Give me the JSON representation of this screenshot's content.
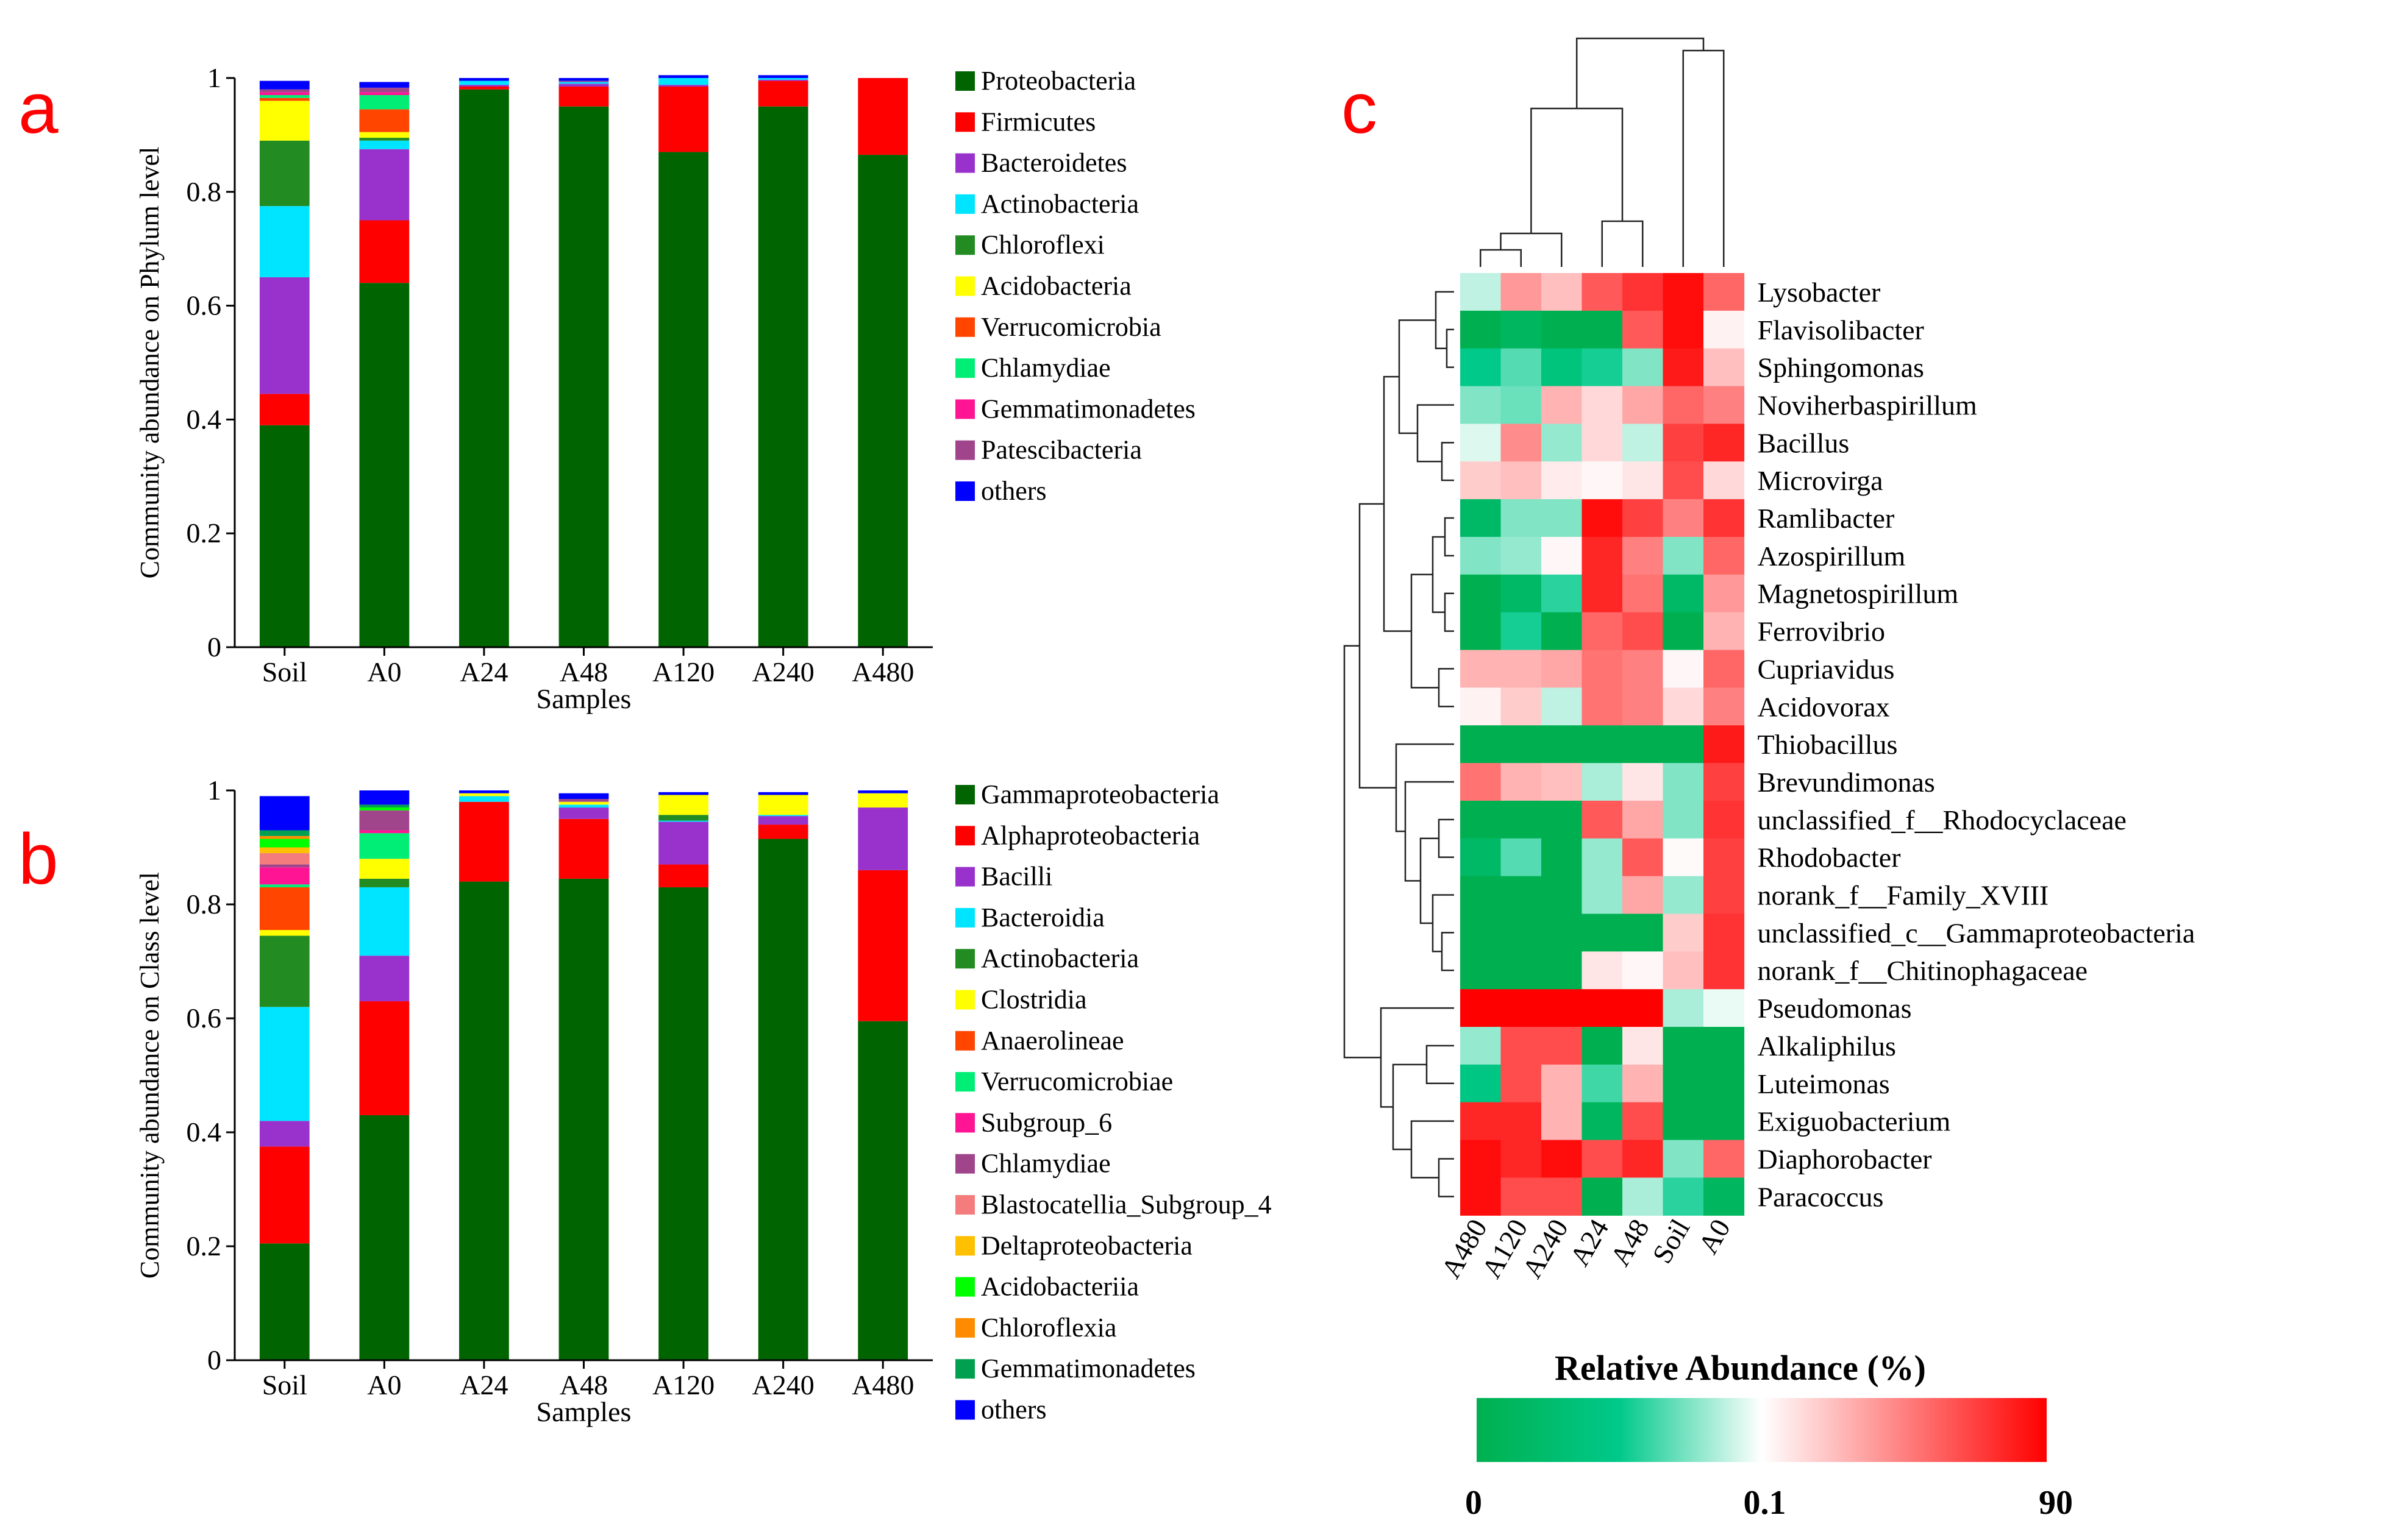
{
  "panels": {
    "a": "a",
    "b": "b",
    "c": "c"
  },
  "chart_data": [
    {
      "type": "bar",
      "stacked": true,
      "panel": "a",
      "xlabel": "Samples",
      "ylabel": "Community abundance on Phylum level",
      "ylim": [
        0,
        1
      ],
      "yticks": [
        "0",
        "0.2",
        "0.4",
        "0.6",
        "0.8",
        "1"
      ],
      "categories": [
        "Soil",
        "A0",
        "A24",
        "A48",
        "A120",
        "A240",
        "A480"
      ],
      "legend_position": "right",
      "series": [
        {
          "name": "Proteobacteria",
          "color": "#006400",
          "values": [
            0.39,
            0.64,
            0.98,
            0.95,
            0.87,
            0.95,
            0.865
          ]
        },
        {
          "name": "Firmicutes",
          "color": "#ff0000",
          "values": [
            0.055,
            0.11,
            0.005,
            0.035,
            0.115,
            0.045,
            0.135
          ]
        },
        {
          "name": "Bacteroidetes",
          "color": "#9932cc",
          "values": [
            0.205,
            0.125,
            0.003,
            0.005,
            0.003,
            0.002,
            0.0
          ]
        },
        {
          "name": "Actinobacteria",
          "color": "#00e5ff",
          "values": [
            0.125,
            0.015,
            0.007,
            0.003,
            0.012,
            0.003,
            0.0
          ]
        },
        {
          "name": "Chloroflexi",
          "color": "#228b22",
          "values": [
            0.115,
            0.005,
            0.0,
            0.0,
            0.0,
            0.0,
            0.0
          ]
        },
        {
          "name": "Acidobacteria",
          "color": "#ffff00",
          "values": [
            0.07,
            0.01,
            0.0,
            0.0,
            0.0,
            0.0,
            0.0
          ]
        },
        {
          "name": "Verrucomicrobia",
          "color": "#ff4500",
          "values": [
            0.005,
            0.04,
            0.0,
            0.0,
            0.0,
            0.0,
            0.0
          ]
        },
        {
          "name": "Chlamydiae",
          "color": "#00ee76",
          "values": [
            0.005,
            0.025,
            0.0,
            0.0,
            0.0,
            0.0,
            0.0
          ]
        },
        {
          "name": "Gemmatimonadetes",
          "color": "#ff1493",
          "values": [
            0.005,
            0.005,
            0.0,
            0.0,
            0.0,
            0.0,
            0.0
          ]
        },
        {
          "name": "Patescibacteria",
          "color": "#a0458c",
          "values": [
            0.005,
            0.008,
            0.0,
            0.002,
            0.0,
            0.0,
            0.0
          ]
        },
        {
          "name": "others",
          "color": "#0000ff",
          "values": [
            0.015,
            0.01,
            0.005,
            0.005,
            0.005,
            0.005,
            0.0
          ]
        }
      ]
    },
    {
      "type": "bar",
      "stacked": true,
      "panel": "b",
      "xlabel": "Samples",
      "ylabel": "Community abundance on Class level",
      "ylim": [
        0,
        1
      ],
      "yticks": [
        "0",
        "0.2",
        "0.4",
        "0.6",
        "0.8",
        "1"
      ],
      "categories": [
        "Soil",
        "A0",
        "A24",
        "A48",
        "A120",
        "A240",
        "A480"
      ],
      "legend_position": "right",
      "series": [
        {
          "name": "Gammaproteobacteria",
          "color": "#006400",
          "values": [
            0.205,
            0.43,
            0.84,
            0.845,
            0.83,
            0.915,
            0.595
          ]
        },
        {
          "name": "Alphaproteobacteria",
          "color": "#ff0000",
          "values": [
            0.17,
            0.2,
            0.14,
            0.105,
            0.04,
            0.025,
            0.265
          ]
        },
        {
          "name": "Bacilli",
          "color": "#9932cc",
          "values": [
            0.045,
            0.08,
            0.0,
            0.02,
            0.075,
            0.015,
            0.11
          ]
        },
        {
          "name": "Bacteroidia",
          "color": "#00e5ff",
          "values": [
            0.2,
            0.12,
            0.01,
            0.005,
            0.002,
            0.002,
            0.0
          ]
        },
        {
          "name": "Actinobacteria",
          "color": "#228b22",
          "values": [
            0.125,
            0.015,
            0.0,
            0.0,
            0.01,
            0.0,
            0.0
          ]
        },
        {
          "name": "Clostridia",
          "color": "#ffff00",
          "values": [
            0.01,
            0.035,
            0.005,
            0.005,
            0.035,
            0.035,
            0.025
          ]
        },
        {
          "name": "Anaerolineae",
          "color": "#ff4500",
          "values": [
            0.075,
            0.0,
            0.0,
            0.0,
            0.0,
            0.0,
            0.0
          ]
        },
        {
          "name": "Verrucomicrobiae",
          "color": "#00ee76",
          "values": [
            0.005,
            0.045,
            0.0,
            0.0,
            0.0,
            0.0,
            0.0
          ]
        },
        {
          "name": "Subgroup_6",
          "color": "#ff1493",
          "values": [
            0.03,
            0.005,
            0.0,
            0.0,
            0.0,
            0.0,
            0.0
          ]
        },
        {
          "name": "Chlamydiae",
          "color": "#a0458c",
          "values": [
            0.005,
            0.035,
            0.0,
            0.005,
            0.0,
            0.0,
            0.0
          ]
        },
        {
          "name": "Blastocatellia_Subgroup_4",
          "color": "#f47c7c",
          "values": [
            0.02,
            0.0,
            0.0,
            0.0,
            0.0,
            0.0,
            0.0
          ]
        },
        {
          "name": "Deltaproteobacteria",
          "color": "#ffc000",
          "values": [
            0.01,
            0.0,
            0.0,
            0.0,
            0.0,
            0.0,
            0.0
          ]
        },
        {
          "name": "Acidobacteriia",
          "color": "#00ff00",
          "values": [
            0.015,
            0.005,
            0.0,
            0.0,
            0.0,
            0.0,
            0.0
          ]
        },
        {
          "name": "Chloroflexia",
          "color": "#ff8c00",
          "values": [
            0.005,
            0.0,
            0.0,
            0.0,
            0.0,
            0.0,
            0.0
          ]
        },
        {
          "name": "Gemmatimonadetes",
          "color": "#00a050",
          "values": [
            0.01,
            0.005,
            0.0,
            0.0,
            0.0,
            0.0,
            0.0
          ]
        },
        {
          "name": "others",
          "color": "#0000ff",
          "values": [
            0.06,
            0.025,
            0.005,
            0.01,
            0.005,
            0.005,
            0.005
          ]
        }
      ]
    },
    {
      "type": "heatmap",
      "panel": "c",
      "columns": [
        "A480",
        "A120",
        "A240",
        "A24",
        "A48",
        "Soil",
        "A0"
      ],
      "rows": [
        "Lysobacter",
        "Flavisolibacter",
        "Sphingomonas",
        "Noviherbaspirillum",
        "Bacillus",
        "Microvirga",
        "Ramlibacter",
        "Azospirillum",
        "Magnetospirillum",
        "Ferrovibrio",
        "Cupriavidus",
        "Acidovorax",
        "Thiobacillus",
        "Brevundimonas",
        "unclassified_f__Rhodocyclaceae",
        "Rhodobacter",
        "norank_f__Family_XVIII",
        "unclassified_c__Gammaproteobacteria",
        "norank_f__Chitinophagaceae",
        "Pseudomonas",
        "Alkaliphilus",
        "Luteimonas",
        "Exiguobacterium",
        "Diaphorobacter",
        "Paracoccus"
      ],
      "values_scaled": [
        [
          -0.15,
          0.4,
          0.25,
          0.65,
          0.8,
          0.95,
          0.6
        ],
        [
          -1,
          -0.9,
          -1,
          -1,
          0.65,
          0.95,
          0.05
        ],
        [
          -0.6,
          -0.4,
          -0.7,
          -0.55,
          -0.3,
          0.9,
          0.25
        ],
        [
          -0.3,
          -0.35,
          0.3,
          0.15,
          0.35,
          0.6,
          0.5
        ],
        [
          -0.08,
          0.45,
          -0.25,
          0.15,
          -0.15,
          0.75,
          0.85
        ],
        [
          0.2,
          0.25,
          0.08,
          0.03,
          0.1,
          0.7,
          0.15
        ],
        [
          -0.85,
          -0.3,
          -0.3,
          0.95,
          0.75,
          0.5,
          0.8
        ],
        [
          -0.3,
          -0.25,
          0.03,
          0.85,
          0.5,
          -0.3,
          0.6
        ],
        [
          -1,
          -0.85,
          -0.5,
          0.85,
          0.55,
          -0.85,
          0.4
        ],
        [
          -1,
          -0.55,
          -1,
          0.6,
          0.7,
          -1,
          0.3
        ],
        [
          0.3,
          0.3,
          0.35,
          0.55,
          0.5,
          0.03,
          0.6
        ],
        [
          0.05,
          0.2,
          -0.15,
          0.55,
          0.5,
          0.15,
          0.5
        ],
        [
          -1,
          -1,
          -1,
          -1,
          -1,
          -1,
          0.9
        ],
        [
          0.55,
          0.3,
          0.25,
          -0.2,
          0.1,
          -0.3,
          0.75
        ],
        [
          -1,
          -1,
          -1,
          0.65,
          0.35,
          -0.3,
          0.8
        ],
        [
          -0.85,
          -0.4,
          -1,
          -0.25,
          0.65,
          0.02,
          0.75
        ],
        [
          -1,
          -1,
          -1,
          -0.25,
          0.35,
          -0.25,
          0.75
        ],
        [
          -1,
          -1,
          -1,
          -1,
          -1,
          0.2,
          0.8
        ],
        [
          -1,
          -1,
          -1,
          0.1,
          0.03,
          0.25,
          0.8
        ],
        [
          1,
          1,
          1,
          1,
          1,
          -0.2,
          -0.05
        ],
        [
          -0.25,
          0.7,
          0.7,
          -1,
          0.1,
          -1,
          -1
        ],
        [
          -0.65,
          0.7,
          0.3,
          -0.45,
          0.3,
          -1,
          -1
        ],
        [
          0.85,
          0.85,
          0.3,
          -0.9,
          0.7,
          -1,
          -1
        ],
        [
          0.95,
          0.85,
          0.95,
          0.7,
          0.85,
          -0.3,
          0.6
        ],
        [
          0.95,
          0.7,
          0.7,
          -1,
          -0.2,
          -0.5,
          -0.9
        ]
      ],
      "colorbar": {
        "title": "Relative Abundance (%)",
        "ticks": [
          "0",
          "0.1",
          "90"
        ],
        "colors": [
          "#00b050",
          "#00c98a",
          "#ffffff",
          "#ff0000"
        ]
      }
    }
  ]
}
